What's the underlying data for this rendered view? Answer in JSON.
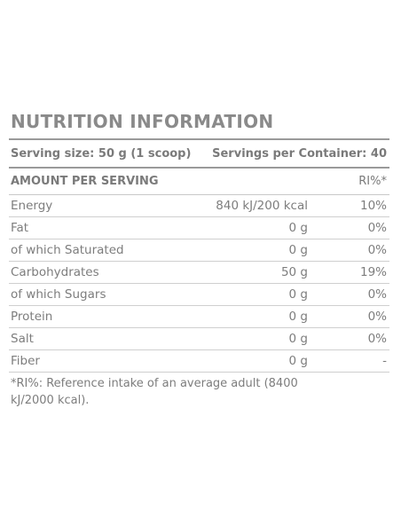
{
  "title": "NUTRITION INFORMATION",
  "serving": {
    "size": "Serving size: 50 g (1 scoop)",
    "per_container": "Servings per Container: 40"
  },
  "header": {
    "label": "AMOUNT PER SERVING",
    "ri": "RI%*"
  },
  "rows": [
    {
      "label": "Energy",
      "amount": "840 kJ/200 kcal",
      "ri": "10%"
    },
    {
      "label": "Fat",
      "amount": "0 g",
      "ri": "0%"
    },
    {
      "label": "of which Saturated",
      "amount": "0 g",
      "ri": "0%"
    },
    {
      "label": "Carbohydrates",
      "amount": "50 g",
      "ri": "19%"
    },
    {
      "label": "of which Sugars",
      "amount": "0 g",
      "ri": "0%"
    },
    {
      "label": "Protein",
      "amount": "0 g",
      "ri": "0%"
    },
    {
      "label": "Salt",
      "amount": "0 g",
      "ri": "0%"
    },
    {
      "label": "Fiber",
      "amount": "0 g",
      "ri": "-"
    }
  ],
  "footnote": "*RI%: Reference intake of an average adult (8400 kJ/2000 kcal)."
}
